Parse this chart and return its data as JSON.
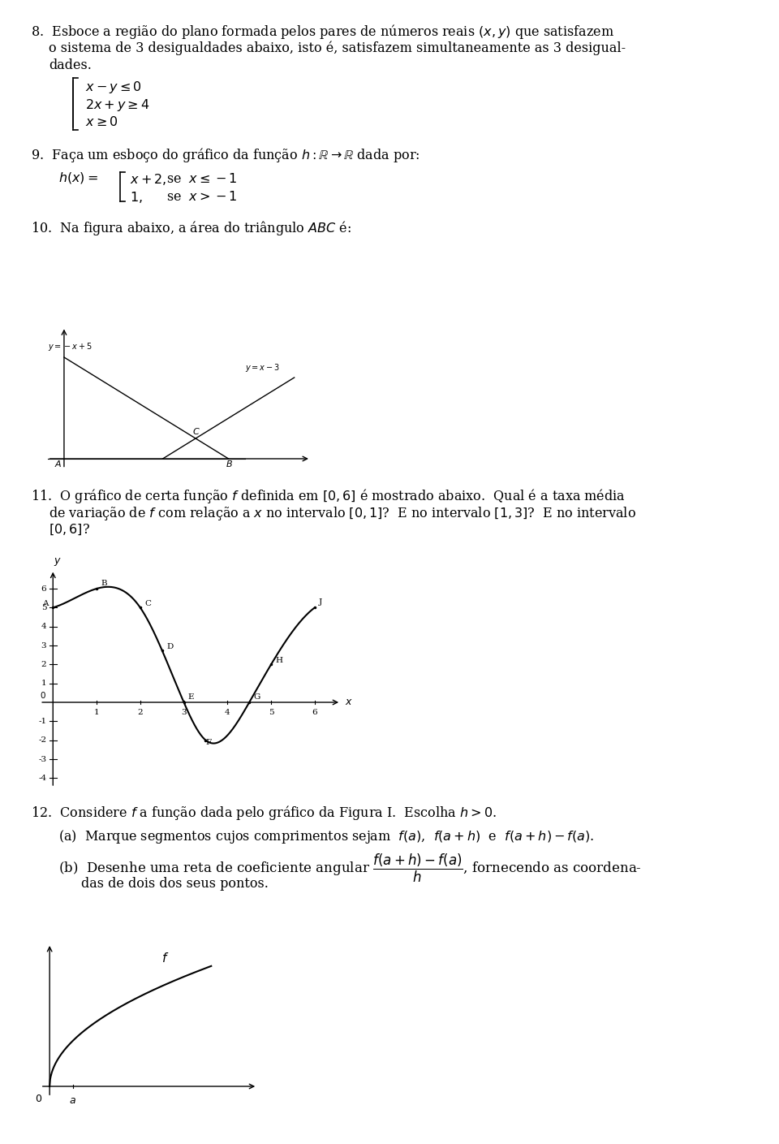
{
  "bg_color": "#ffffff",
  "text_color": "#000000",
  "fig_width": 9.6,
  "fig_height": 14.09,
  "q8_text": "8.  Esboce a regiäo do plano formada pelos pares de números reais $(x, y)$ que satisfazem\n    o sistema de 3 desigualdades abaixo, isto é, satisfazem simultaneamente as 3 desigual-\n    dades.",
  "q9_text": "9.  Faça um esboço do gráfico da função $h : \\mathbb{R} \\rightarrow \\mathbb{R}$ dada por:",
  "q10_text": "10.  Na figura abaixo, a área do triângulo $ABC$ é:",
  "q11_text": "11.  O gráfico de certa função $f$ definida em $[0, 6]$ é mostrado abaixo.  Qual é a taxa média\n     de variação de $f$ com relação a $x$ no intervalo $[0, 1]$?  E no intervalo $[1, 3]$?  E no intervalo\n     $[0, 6]$?",
  "q12_text": "12.  Considere $f$ a função dada pelo gráfico da Figura I.  Escolha $h > 0$.",
  "q12a_text": "(a)  Marque segmentos cujos comprimentos sejam  $f(a)$,  $f(a+h)$  e  $f(a+h) - f(a)$.",
  "q12b_text": "(b)  Desenhe uma reta de coeficiente angular $\\dfrac{f(a+h)-f(a)}{h}$, fornecendo as coordena-\n     das de dois dos seus pontos."
}
